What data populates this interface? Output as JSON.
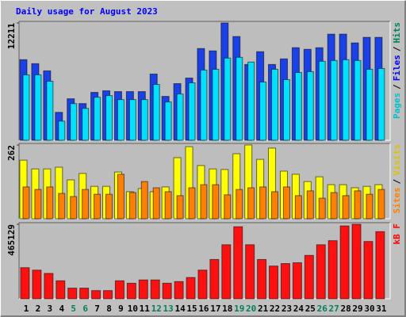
{
  "title": "Daily usage for August 2023",
  "chart_data": [
    {
      "type": "bar",
      "ylim": [
        0,
        12211
      ],
      "yticks": [
        12211
      ],
      "grid": false,
      "legend": [
        "Pages",
        "Files",
        "Hits"
      ],
      "legend_colors": [
        "#00c0d0",
        "#0000ff",
        "#00805c"
      ],
      "legend_separator": "/",
      "series": [
        {
          "name": "Files",
          "color": "#1a40e8",
          "values": [
            8390,
            7975,
            7227,
            2907,
            4320,
            3821,
            4984,
            5150,
            5067,
            5067,
            5067,
            6895,
            4569,
            5898,
            6479,
            9553,
            9304,
            12211,
            10799,
            7892,
            9221,
            7892,
            8473,
            9636,
            9470,
            9636,
            11048,
            11048,
            10135,
            10716,
            10716
          ]
        },
        {
          "name": "Pages",
          "color": "#00e0ff",
          "values": [
            6812,
            6812,
            6147,
            1994,
            3821,
            3323,
            4486,
            4652,
            4237,
            4237,
            4237,
            5815,
            3987,
            4818,
            5981,
            7310,
            7393,
            8556,
            8639,
            8141,
            6064,
            7393,
            6313,
            7061,
            7144,
            8224,
            8307,
            8390,
            8307,
            7393,
            7476
          ]
        }
      ]
    },
    {
      "type": "bar",
      "ylim": [
        0,
        262
      ],
      "yticks": [
        262
      ],
      "grid": false,
      "legend": [
        "Sites",
        "Visits"
      ],
      "legend_colors": [
        "#ff8000",
        "#e0c000"
      ],
      "legend_separator": "/",
      "series": [
        {
          "name": "Visits",
          "color": "#ffff00",
          "values": [
            208,
            177,
            177,
            183,
            138,
            161,
            115,
            115,
            166,
            96,
            107,
            96,
            113,
            217,
            256,
            189,
            177,
            175,
            231,
            262,
            211,
            251,
            169,
            158,
            132,
            149,
            121,
            121,
            110,
            115,
            121
          ]
        },
        {
          "name": "Sites",
          "color": "#ff8000",
          "values": [
            113,
            104,
            113,
            90,
            79,
            104,
            87,
            87,
            158,
            93,
            132,
            110,
            96,
            82,
            110,
            121,
            121,
            85,
            104,
            110,
            113,
            96,
            113,
            82,
            99,
            73,
            93,
            82,
            99,
            87,
            104
          ]
        }
      ]
    },
    {
      "type": "bar",
      "ylim": [
        0,
        465129
      ],
      "yticks": [
        465129
      ],
      "grid": false,
      "legend": [
        "kB F"
      ],
      "legend_colors": [
        "#ff0000"
      ],
      "legend_separator": "/",
      "categories": [
        "1",
        "2",
        "3",
        "4",
        "5",
        "6",
        "7",
        "8",
        "9",
        "10",
        "11",
        "12",
        "13",
        "14",
        "15",
        "16",
        "17",
        "18",
        "19",
        "20",
        "21",
        "22",
        "23",
        "24",
        "25",
        "26",
        "27",
        "28",
        "29",
        "30",
        "31"
      ],
      "weekend": [
        false,
        false,
        false,
        false,
        true,
        true,
        false,
        false,
        false,
        false,
        false,
        true,
        true,
        false,
        false,
        false,
        false,
        false,
        true,
        true,
        false,
        false,
        false,
        false,
        false,
        true,
        true,
        false,
        false,
        false,
        false
      ],
      "weekend_color": "#00805c",
      "series": [
        {
          "name": "kB F",
          "color": "#ff1010",
          "values": [
            194218,
            178885,
            158441,
            112442,
            66443,
            66443,
            51110,
            51110,
            112442,
            97109,
            117553,
            117553,
            97109,
            107331,
            132886,
            178885,
            245328,
            337326,
            449768,
            337326,
            245328,
            204440,
            219773,
            224884,
            270883,
            337326,
            362881,
            454879,
            465129,
            357770,
            419101
          ]
        }
      ]
    }
  ]
}
